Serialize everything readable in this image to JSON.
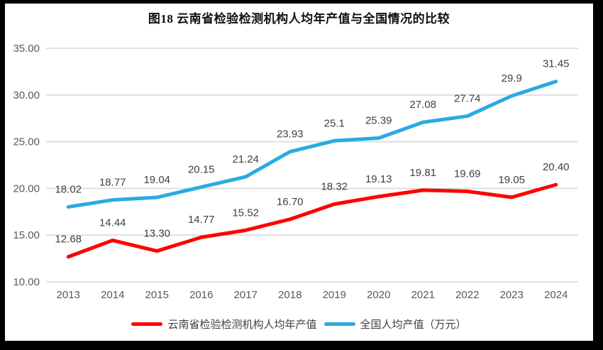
{
  "figure": {
    "background_color": "#000000",
    "panel_color": "#ffffff"
  },
  "chart_data": {
    "type": "line",
    "title": "图18 云南省检验检测机构人均年产值与全国情况的比较",
    "xlabel": "",
    "ylabel": "",
    "categories": [
      "2013",
      "2014",
      "2015",
      "2016",
      "2017",
      "2018",
      "2019",
      "2020",
      "2021",
      "2022",
      "2023",
      "2024"
    ],
    "ylim": [
      10,
      35
    ],
    "ytick_step": 5,
    "ytick_labels": [
      "10.00",
      "15.00",
      "20.00",
      "25.00",
      "30.00",
      "35.00"
    ],
    "grid": "horizontal",
    "gridline_color": "#d9d9d9",
    "axis_label_color": "#595959",
    "data_label_color": "#404040",
    "legend_position": "bottom",
    "series": [
      {
        "name": "云南省检验检测机构人均年产值",
        "color": "#fe0000",
        "values": [
          12.68,
          14.44,
          13.3,
          14.77,
          15.52,
          16.7,
          18.32,
          19.13,
          19.81,
          19.69,
          19.05,
          20.4
        ],
        "labels": [
          "12.68",
          "14.44",
          "13.30",
          "14.77",
          "15.52",
          "16.70",
          "18.32",
          "19.13",
          "19.81",
          "19.69",
          "19.05",
          "20.40"
        ]
      },
      {
        "name": "全国人均产值（万元）",
        "color": "#29abe2",
        "values": [
          18.02,
          18.77,
          19.04,
          20.15,
          21.24,
          23.93,
          25.1,
          25.39,
          27.08,
          27.74,
          29.9,
          31.45
        ],
        "labels": [
          "18.02",
          "18.77",
          "19.04",
          "20.15",
          "21.24",
          "23.93",
          "25.1",
          "25.39",
          "27.08",
          "27.74",
          "29.9",
          "31.45"
        ]
      }
    ]
  }
}
